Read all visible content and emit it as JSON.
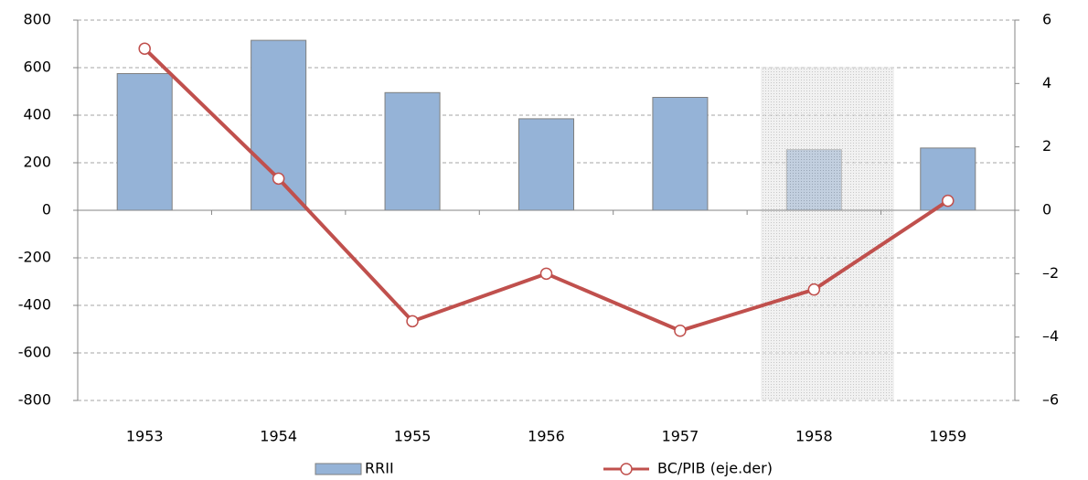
{
  "chart_data": {
    "type": "bar",
    "categories": [
      "1953",
      "1954",
      "1955",
      "1956",
      "1957",
      "1958",
      "1959"
    ],
    "series": [
      {
        "name": "RRII",
        "type": "bar",
        "color": "#95b3d7",
        "values": [
          575,
          715,
          495,
          385,
          475,
          255,
          262
        ]
      },
      {
        "name": "BC/PIB (eje.der)",
        "type": "line",
        "axis": "y2",
        "color": "#c0504d",
        "values": [
          5.1,
          1.0,
          -3.5,
          -2.0,
          -3.8,
          -2.5,
          0.3
        ]
      }
    ],
    "ylim": [
      -800,
      800
    ],
    "yticks": [
      -800,
      -600,
      -400,
      -200,
      0,
      200,
      400,
      600,
      800
    ],
    "y2lim": [
      -6,
      6
    ],
    "y2ticks": [
      {
        "value": -6,
        "label": "–6"
      },
      {
        "value": -4,
        "label": "–4"
      },
      {
        "value": -2,
        "label": "–2"
      },
      0,
      2,
      4,
      6
    ],
    "grid": true,
    "legend": "bottom"
  }
}
